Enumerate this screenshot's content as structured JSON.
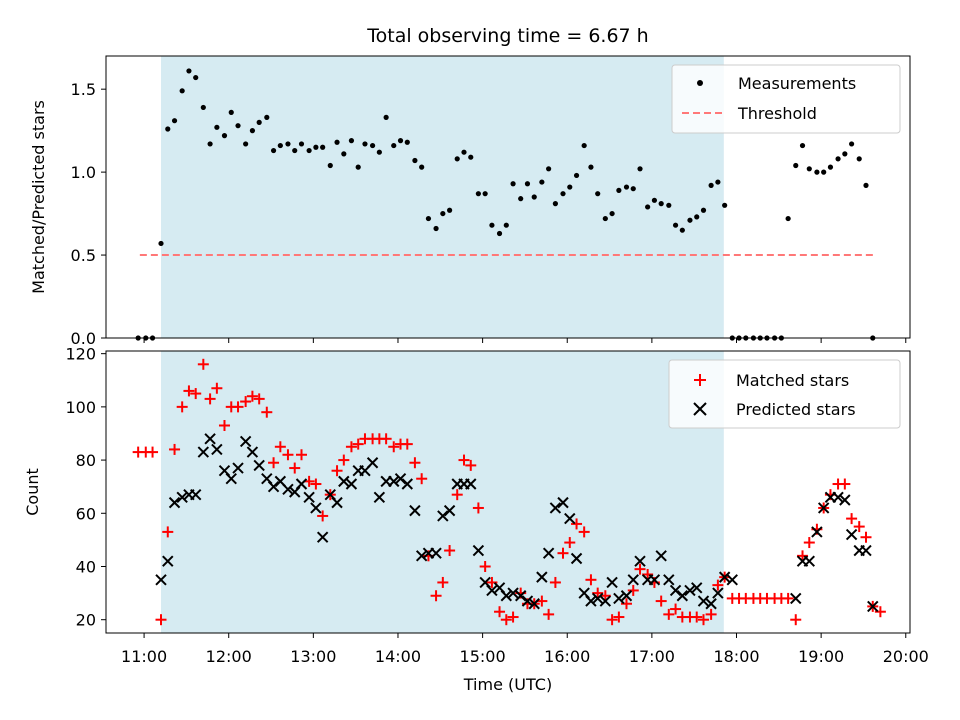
{
  "chart_data": [
    {
      "type": "scatter",
      "title": "Total observing time = 6.67 h",
      "ylabel": "Matched/Predicted stars",
      "xlabel": "",
      "xlim": [
        10.55,
        20.05
      ],
      "ylim": [
        0.0,
        1.7
      ],
      "yticks": [
        "0.0",
        "0.5",
        "1.0",
        "1.5"
      ],
      "shaded_region": {
        "from": 11.2,
        "to": 17.85,
        "color": "#add8e6"
      },
      "legend": {
        "position": "top-right"
      },
      "series": [
        {
          "name": "Measurements",
          "marker": "dot",
          "color": "#000000",
          "points": [
            [
              10.93,
              0.0
            ],
            [
              11.02,
              0.0
            ],
            [
              11.1,
              0.0
            ],
            [
              11.2,
              0.57
            ],
            [
              11.28,
              1.26
            ],
            [
              11.36,
              1.31
            ],
            [
              11.45,
              1.49
            ],
            [
              11.53,
              1.61
            ],
            [
              11.61,
              1.57
            ],
            [
              11.7,
              1.39
            ],
            [
              11.78,
              1.17
            ],
            [
              11.86,
              1.27
            ],
            [
              11.95,
              1.22
            ],
            [
              12.03,
              1.36
            ],
            [
              12.11,
              1.28
            ],
            [
              12.2,
              1.17
            ],
            [
              12.28,
              1.25
            ],
            [
              12.36,
              1.3
            ],
            [
              12.45,
              1.33
            ],
            [
              12.53,
              1.13
            ],
            [
              12.61,
              1.16
            ],
            [
              12.7,
              1.17
            ],
            [
              12.78,
              1.13
            ],
            [
              12.86,
              1.17
            ],
            [
              12.95,
              1.13
            ],
            [
              13.03,
              1.15
            ],
            [
              13.11,
              1.15
            ],
            [
              13.2,
              1.04
            ],
            [
              13.28,
              1.18
            ],
            [
              13.36,
              1.11
            ],
            [
              13.45,
              1.19
            ],
            [
              13.53,
              1.03
            ],
            [
              13.61,
              1.17
            ],
            [
              13.7,
              1.16
            ],
            [
              13.78,
              1.12
            ],
            [
              13.86,
              1.33
            ],
            [
              13.95,
              1.16
            ],
            [
              14.03,
              1.19
            ],
            [
              14.11,
              1.18
            ],
            [
              14.2,
              1.07
            ],
            [
              14.28,
              1.03
            ],
            [
              14.36,
              0.72
            ],
            [
              14.45,
              0.66
            ],
            [
              14.53,
              0.75
            ],
            [
              14.61,
              0.77
            ],
            [
              14.7,
              1.08
            ],
            [
              14.78,
              1.12
            ],
            [
              14.86,
              1.09
            ],
            [
              14.95,
              0.87
            ],
            [
              15.03,
              0.87
            ],
            [
              15.11,
              0.68
            ],
            [
              15.2,
              0.63
            ],
            [
              15.28,
              0.68
            ],
            [
              15.36,
              0.93
            ],
            [
              15.45,
              0.84
            ],
            [
              15.53,
              0.93
            ],
            [
              15.61,
              0.85
            ],
            [
              15.7,
              0.94
            ],
            [
              15.78,
              1.02
            ],
            [
              15.86,
              0.81
            ],
            [
              15.95,
              0.87
            ],
            [
              16.03,
              0.91
            ],
            [
              16.11,
              0.98
            ],
            [
              16.2,
              1.16
            ],
            [
              16.28,
              1.03
            ],
            [
              16.36,
              0.87
            ],
            [
              16.45,
              0.72
            ],
            [
              16.53,
              0.75
            ],
            [
              16.61,
              0.89
            ],
            [
              16.7,
              0.91
            ],
            [
              16.78,
              0.9
            ],
            [
              16.86,
              1.02
            ],
            [
              16.95,
              0.79
            ],
            [
              17.03,
              0.83
            ],
            [
              17.11,
              0.81
            ],
            [
              17.2,
              0.8
            ],
            [
              17.28,
              0.68
            ],
            [
              17.36,
              0.65
            ],
            [
              17.45,
              0.71
            ],
            [
              17.53,
              0.73
            ],
            [
              17.61,
              0.77
            ],
            [
              17.7,
              0.92
            ],
            [
              17.78,
              0.94
            ],
            [
              17.86,
              0.8
            ],
            [
              17.95,
              0.0
            ],
            [
              18.03,
              0.0
            ],
            [
              18.11,
              0.0
            ],
            [
              18.2,
              0.0
            ],
            [
              18.28,
              0.0
            ],
            [
              18.36,
              0.0
            ],
            [
              18.45,
              0.0
            ],
            [
              18.53,
              0.0
            ],
            [
              18.61,
              0.72
            ],
            [
              18.7,
              1.04
            ],
            [
              18.78,
              1.16
            ],
            [
              18.86,
              1.02
            ],
            [
              18.95,
              1.0
            ],
            [
              19.03,
              1.0
            ],
            [
              19.11,
              1.03
            ],
            [
              19.2,
              1.08
            ],
            [
              19.28,
              1.11
            ],
            [
              19.36,
              1.17
            ],
            [
              19.45,
              1.08
            ],
            [
              19.53,
              0.92
            ],
            [
              19.61,
              0.0
            ]
          ]
        },
        {
          "name": "Threshold",
          "type": "line",
          "style": "dashed",
          "color": "#ff7878",
          "points": [
            [
              10.95,
              0.5
            ],
            [
              19.65,
              0.5
            ]
          ]
        }
      ]
    },
    {
      "type": "scatter",
      "title": "",
      "ylabel": "Count",
      "xlabel": "Time (UTC)",
      "xlim": [
        10.55,
        20.05
      ],
      "ylim": [
        15.0,
        121.0
      ],
      "yticks": [
        "20",
        "40",
        "60",
        "80",
        "100",
        "120"
      ],
      "xticks": [
        "11:00",
        "12:00",
        "13:00",
        "14:00",
        "15:00",
        "16:00",
        "17:00",
        "18:00",
        "19:00",
        "20:00"
      ],
      "shaded_region": {
        "from": 11.2,
        "to": 17.85,
        "color": "#add8e6"
      },
      "legend": {
        "position": "top-right"
      },
      "series": [
        {
          "name": "Matched stars",
          "marker": "plus",
          "color": "#ff0000",
          "values": [
            83,
            83,
            83,
            20,
            53,
            84,
            100,
            106,
            105,
            116,
            103,
            107,
            93,
            100,
            100,
            102,
            104,
            103,
            98,
            79,
            85,
            82,
            77,
            82,
            72,
            71,
            59,
            67,
            76,
            80,
            85,
            86,
            88,
            88,
            88,
            88,
            85,
            86,
            86,
            79,
            73,
            44,
            29,
            34,
            46,
            67,
            80,
            78,
            62,
            40,
            34,
            23,
            20,
            21,
            30,
            26,
            26,
            27,
            22,
            34,
            45,
            49,
            56,
            53,
            35,
            30,
            29,
            20,
            21,
            26,
            31,
            39,
            37,
            34,
            27,
            22,
            24,
            21,
            21,
            21,
            20,
            22,
            33,
            36,
            28,
            28,
            28,
            28,
            28,
            28,
            28,
            28,
            28,
            20,
            44,
            49,
            54,
            62,
            67,
            71,
            71,
            58,
            55,
            51,
            25,
            23
          ]
        },
        {
          "name": "Predicted stars",
          "marker": "x",
          "color": "#000000",
          "values": [
            null,
            null,
            null,
            35,
            42,
            64,
            66,
            67,
            67,
            83,
            88,
            84,
            76,
            73,
            77,
            87,
            83,
            78,
            73,
            70,
            72,
            69,
            68,
            71,
            66,
            62,
            51,
            67,
            64,
            72,
            71,
            76,
            76,
            79,
            66,
            72,
            72,
            73,
            71,
            61,
            44,
            45,
            45,
            59,
            61,
            71,
            71,
            71,
            46,
            34,
            31,
            32,
            29,
            30,
            29,
            27,
            26,
            36,
            45,
            62,
            64,
            58,
            43,
            30,
            27,
            28,
            27,
            34,
            28,
            29,
            35,
            42,
            35,
            35,
            44,
            35,
            31,
            29,
            31,
            32,
            27,
            26,
            30,
            36,
            35,
            null,
            null,
            null,
            null,
            null,
            null,
            null,
            null,
            28,
            42,
            42,
            53,
            62,
            66,
            66,
            65,
            52,
            46,
            46,
            25,
            null
          ]
        }
      ]
    }
  ]
}
